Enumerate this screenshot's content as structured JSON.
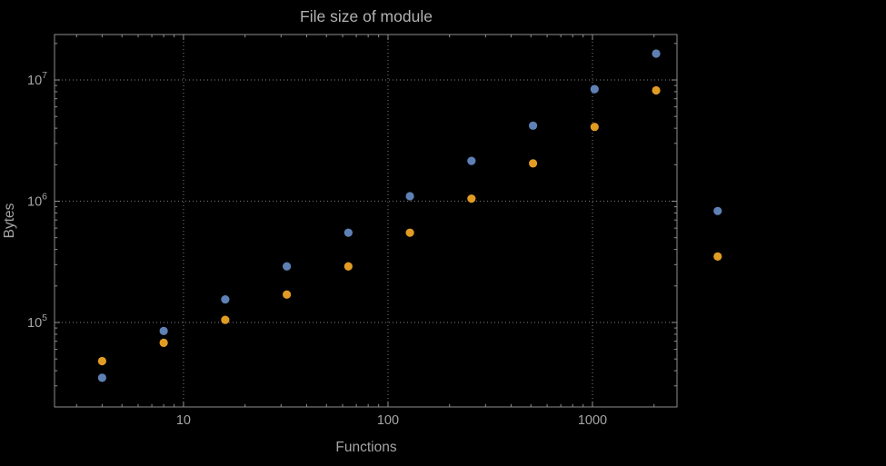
{
  "colors": {
    "background": "#000000",
    "frame": "#8e8e8e",
    "grid": "#6a6a6a",
    "text": "#a5a5a5",
    "title": "#b2b2b2"
  },
  "chart_data": {
    "type": "scatter",
    "title": "File size of module",
    "xlabel": "Functions",
    "ylabel": "Bytes",
    "x_scale": "log",
    "y_scale": "log",
    "xlim": [
      2.34,
      2590
    ],
    "ylim": [
      20100,
      23700000
    ],
    "grid": "dotted-lines-at-major-ticks",
    "legend": "none",
    "x_ticks": {
      "major": [
        10,
        100,
        1000
      ],
      "labels": [
        "10",
        "100",
        "1000"
      ]
    },
    "y_ticks": {
      "major": [
        100000,
        1000000,
        10000000
      ],
      "label_base": "10",
      "label_exponents": [
        5,
        6,
        7
      ]
    },
    "series": [
      {
        "name": "blue",
        "color": "#5e81b5",
        "x": [
          4,
          8,
          16,
          32,
          64,
          128,
          256,
          512,
          1024,
          2048,
          4096
        ],
        "y": [
          35000,
          85000,
          155000,
          290000,
          550000,
          1100000,
          2150000,
          4200000,
          8400000,
          16500000,
          830000
        ]
      },
      {
        "name": "orange",
        "color": "#e19c24",
        "x": [
          4,
          8,
          16,
          32,
          64,
          128,
          256,
          512,
          1024,
          2048,
          4096
        ],
        "y": [
          48000,
          68000,
          105000,
          170000,
          290000,
          550000,
          1050000,
          2050000,
          4100000,
          8200000,
          350000
        ]
      }
    ]
  }
}
